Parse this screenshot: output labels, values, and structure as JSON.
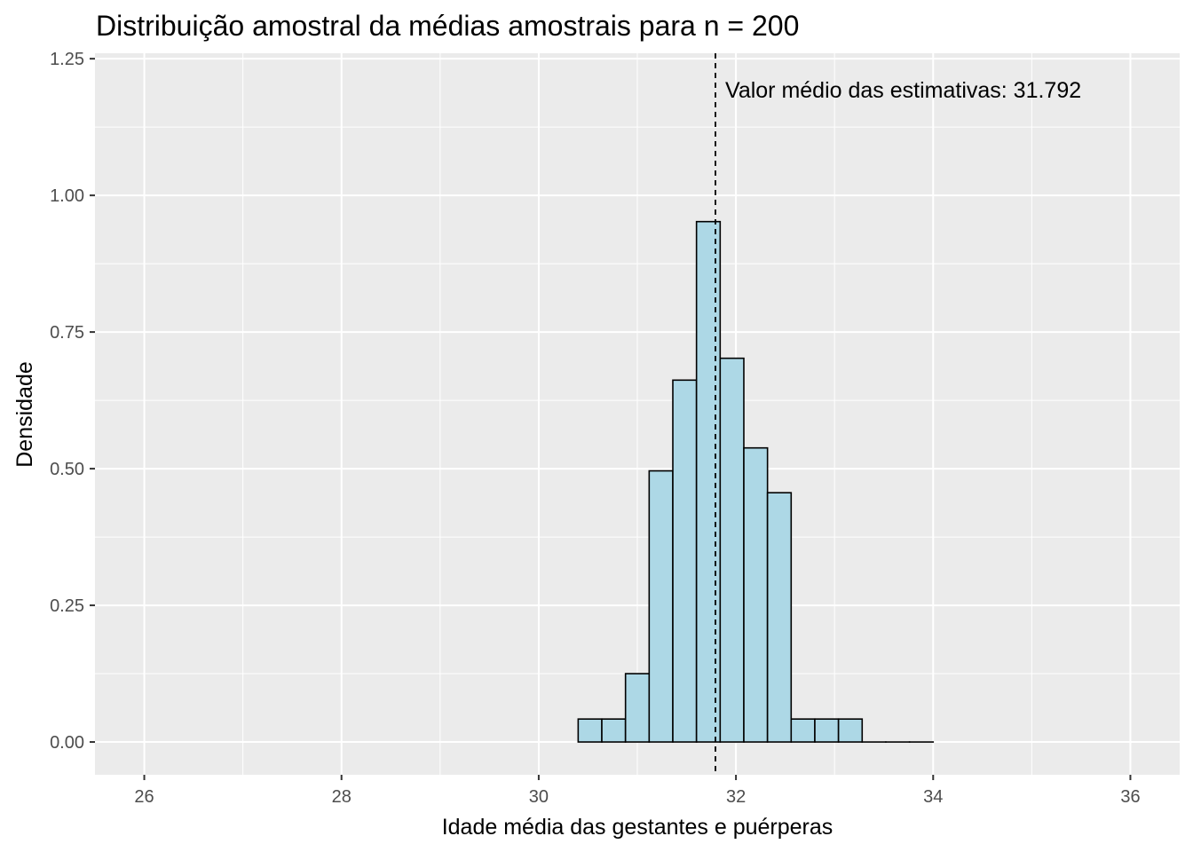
{
  "chart_data": {
    "type": "bar",
    "title": "Distribuição amostral da médias amostrais para n = 200",
    "xlabel": "Idade média das gestantes e puérperas",
    "ylabel": "Densidade",
    "xlim": [
      25.5,
      36.5
    ],
    "ylim": [
      -0.06,
      1.26
    ],
    "x_ticks": [
      26,
      28,
      30,
      32,
      34,
      36
    ],
    "x_tick_labels": [
      "26",
      "28",
      "30",
      "32",
      "34",
      "36"
    ],
    "y_ticks": [
      0,
      0.25,
      0.5,
      0.75,
      1.0,
      1.25
    ],
    "y_tick_labels": [
      "0.00",
      "0.25",
      "0.50",
      "0.75",
      "1.00",
      "1.25"
    ],
    "bin_width": 0.24,
    "bins": [
      {
        "start": 30.4,
        "end": 30.64,
        "density": 0.042
      },
      {
        "start": 30.64,
        "end": 30.88,
        "density": 0.042
      },
      {
        "start": 30.88,
        "end": 31.12,
        "density": 0.125
      },
      {
        "start": 31.12,
        "end": 31.36,
        "density": 0.496
      },
      {
        "start": 31.36,
        "end": 31.6,
        "density": 0.662
      },
      {
        "start": 31.6,
        "end": 31.84,
        "density": 0.952
      },
      {
        "start": 31.84,
        "end": 32.08,
        "density": 0.702
      },
      {
        "start": 32.08,
        "end": 32.32,
        "density": 0.538
      },
      {
        "start": 32.32,
        "end": 32.56,
        "density": 0.456
      },
      {
        "start": 32.56,
        "end": 32.8,
        "density": 0.042
      },
      {
        "start": 32.8,
        "end": 33.04,
        "density": 0.042
      },
      {
        "start": 33.04,
        "end": 33.28,
        "density": 0.042
      },
      {
        "start": 33.28,
        "end": 33.52,
        "density": 0
      },
      {
        "start": 33.52,
        "end": 33.76,
        "density": 0
      },
      {
        "start": 33.76,
        "end": 34.0,
        "density": 0
      }
    ],
    "mean_line": 31.792,
    "annotation": "Valor médio das estimativas: 31.792",
    "grid": true,
    "colors": {
      "panel_bg": "#ebebeb",
      "grid_major": "#ffffff",
      "bar_fill": "#add8e6",
      "bar_stroke": "#000000",
      "tick_color": "#333333"
    }
  }
}
